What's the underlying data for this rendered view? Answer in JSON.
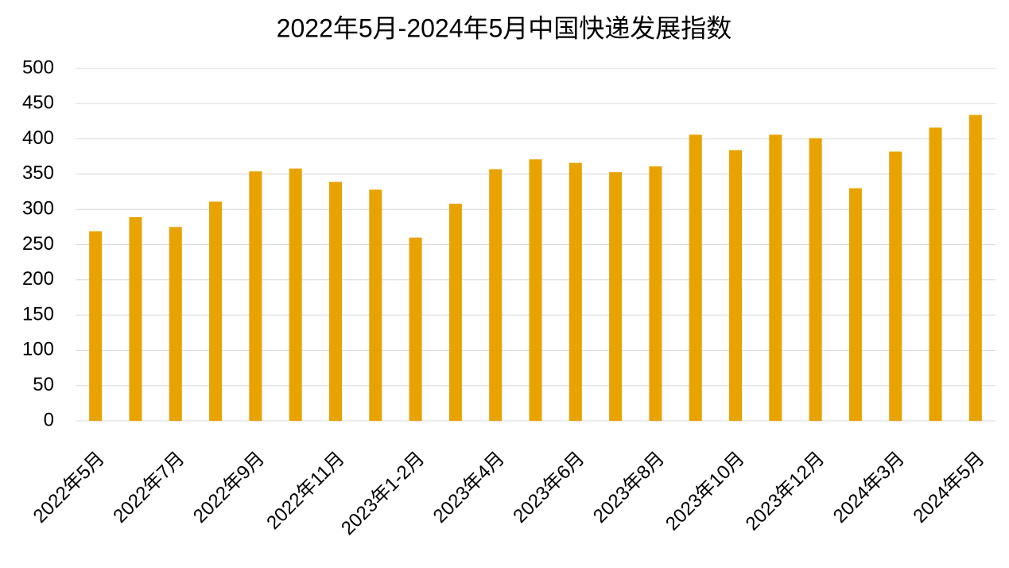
{
  "chart_data": {
    "type": "bar",
    "title": "2022年5月-2024年5月中国快递发展指数",
    "categories": [
      "2022年5月",
      null,
      "2022年7月",
      null,
      "2022年9月",
      null,
      "2022年11月",
      null,
      "2023年1-2月",
      null,
      "2023年4月",
      null,
      "2023年6月",
      null,
      "2023年8月",
      null,
      "2023年10月",
      null,
      "2023年12月",
      null,
      "2024年3月",
      null,
      "2024年5月"
    ],
    "values": [
      269,
      289,
      275,
      311,
      354,
      358,
      339,
      328,
      260,
      308,
      357,
      371,
      366,
      353,
      361,
      406,
      384,
      406,
      401,
      330,
      382,
      416,
      434
    ],
    "color": "#e8a202",
    "ylim": [
      0,
      500
    ],
    "yticks": [
      0,
      50,
      100,
      150,
      200,
      250,
      300,
      350,
      400,
      450,
      500
    ],
    "grid": true
  }
}
